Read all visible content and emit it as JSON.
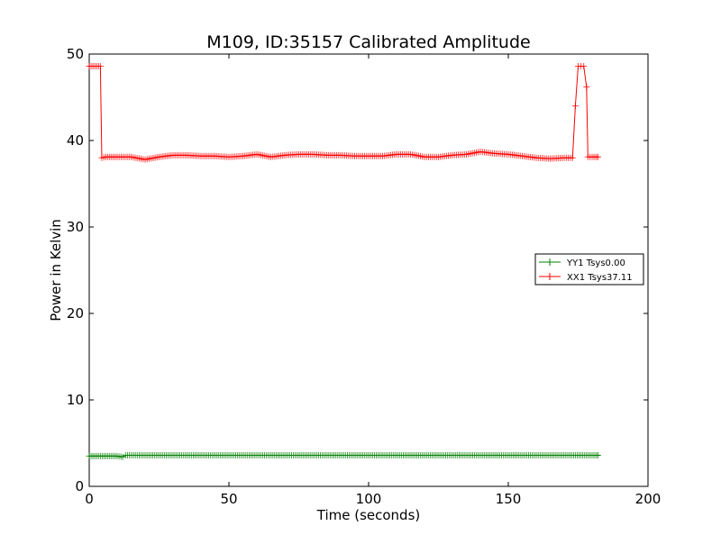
{
  "chart_data": {
    "type": "line",
    "title": "M109, ID:35157 Calibrated Amplitude",
    "xlabel": "Time (seconds)",
    "ylabel": "Power in Kelvin",
    "xlim": [
      0,
      200
    ],
    "ylim": [
      0,
      50
    ],
    "x_ticks": [
      "0",
      "50",
      "100",
      "150",
      "200"
    ],
    "y_ticks": [
      "0",
      "10",
      "20",
      "30",
      "40",
      "50"
    ],
    "grid": false,
    "legend_position": "right",
    "series": [
      {
        "name": "YY1 Tsys0.00",
        "color": "#008000",
        "marker": "+",
        "x": [
          0,
          4,
          8,
          10,
          12,
          13,
          20,
          40,
          60,
          80,
          100,
          120,
          140,
          160,
          172,
          176,
          180,
          182
        ],
        "y": [
          3.5,
          3.5,
          3.5,
          3.5,
          3.4,
          3.6,
          3.6,
          3.6,
          3.6,
          3.6,
          3.6,
          3.6,
          3.6,
          3.6,
          3.6,
          3.6,
          3.6,
          3.6
        ]
      },
      {
        "name": "XX1 Tsys37.11",
        "color": "#ff0000",
        "marker": "+",
        "x": [
          0,
          2,
          4,
          4.5,
          6,
          8,
          10,
          15,
          20,
          25,
          30,
          35,
          40,
          45,
          50,
          55,
          60,
          65,
          70,
          75,
          80,
          85,
          90,
          95,
          100,
          105,
          110,
          115,
          120,
          125,
          130,
          135,
          140,
          145,
          150,
          155,
          160,
          165,
          170,
          173,
          174,
          175,
          176,
          177,
          178,
          178.5,
          180,
          182
        ],
        "y": [
          48.6,
          48.6,
          48.6,
          38.0,
          38.1,
          38.1,
          38.1,
          38.1,
          37.8,
          38.1,
          38.3,
          38.3,
          38.2,
          38.2,
          38.1,
          38.2,
          38.4,
          38.1,
          38.3,
          38.4,
          38.4,
          38.3,
          38.3,
          38.2,
          38.2,
          38.2,
          38.4,
          38.4,
          38.1,
          38.1,
          38.3,
          38.4,
          38.7,
          38.5,
          38.4,
          38.2,
          38.0,
          37.9,
          38.0,
          38.0,
          44.0,
          48.6,
          48.6,
          48.6,
          46.2,
          38.1,
          38.1,
          38.1
        ]
      }
    ]
  }
}
